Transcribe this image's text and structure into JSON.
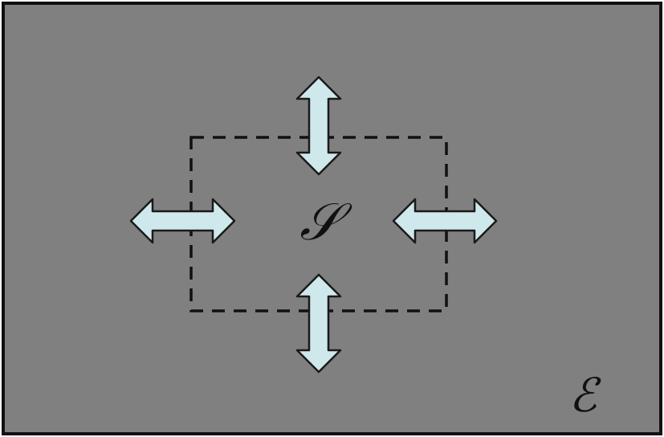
{
  "diagram": {
    "system_label": "𝒮",
    "environment_label": "ℰ",
    "colors": {
      "environment_fill": "#808080",
      "frame_stroke": "#111111",
      "boundary_stroke": "#111111",
      "arrow_fill": "#cfe8ec",
      "arrow_stroke": "#1a1a1a",
      "label_color": "#111111"
    },
    "arrows": [
      {
        "name": "arrow-top",
        "direction": "vertical",
        "meaning": "exchange"
      },
      {
        "name": "arrow-bottom",
        "direction": "vertical",
        "meaning": "exchange"
      },
      {
        "name": "arrow-left",
        "direction": "horizontal",
        "meaning": "exchange"
      },
      {
        "name": "arrow-right",
        "direction": "horizontal",
        "meaning": "exchange"
      }
    ]
  }
}
